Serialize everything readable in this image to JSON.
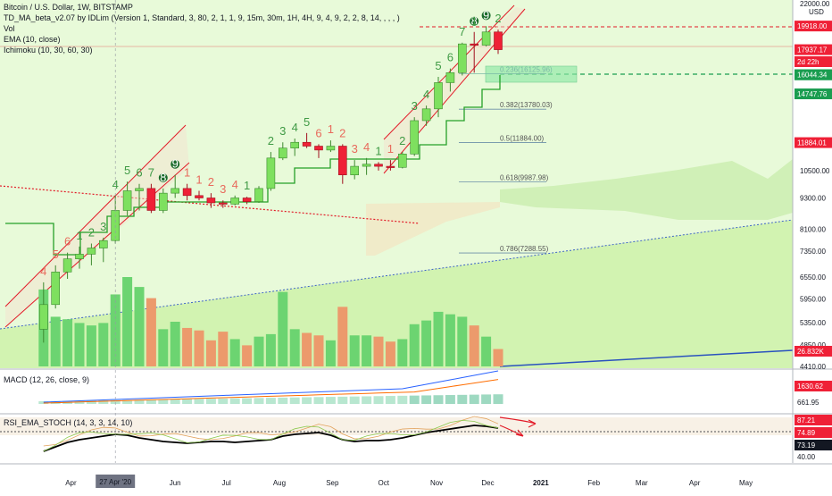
{
  "chart": {
    "title": "Bitcoin / U.S. Dollar, 1W, BITSTAMP",
    "indicators": [
      "TD_MA_beta_v2.07 by IDLim (Version 1, Standard, 3, 80, 2, 1, 1, 9, 15m, 30m, 1H, 4H, 9, 4, 9, 2, 2, 8, 14, , , , )",
      "Vol",
      "EMA (10, close)",
      "Ichimoku (10, 30, 60, 30)"
    ],
    "currency": "USD",
    "macd_label": "MACD (12, 26, close, 9)",
    "rsi_label": "RSI_EMA_STOCH (14, 3, 3, 14, 10)",
    "colors": {
      "up": "#7ee05f",
      "down": "#ef2036",
      "td_up": "#3f9a45",
      "td_down": "#e86a5c",
      "ichimoku_cloud": "#cdeeb2",
      "kijun": "#25a028",
      "channel": "#e21b28",
      "ema": "#e9a08a",
      "volume_up": "#6cd471",
      "volume_down": "#ec9a6c"
    }
  },
  "chart_data": [
    {
      "type": "candlestick",
      "scale": "log",
      "ylim": [
        4410,
        22000
      ],
      "x_range": [
        "2020-03-09",
        "2021-05-31"
      ],
      "candles": [
        {
          "date": "2020-03-16",
          "open": 5200,
          "high": 6400,
          "low": 4900,
          "close": 5800
        },
        {
          "date": "2020-03-23",
          "open": 5800,
          "high": 6900,
          "low": 5700,
          "close": 6700
        },
        {
          "date": "2020-03-30",
          "open": 6700,
          "high": 7300,
          "low": 6500,
          "close": 7100
        },
        {
          "date": "2020-04-06",
          "open": 7100,
          "high": 7500,
          "low": 6800,
          "close": 7250
        },
        {
          "date": "2020-04-13",
          "open": 7250,
          "high": 7600,
          "low": 6900,
          "close": 7450
        },
        {
          "date": "2020-04-20",
          "open": 7450,
          "high": 7800,
          "low": 7000,
          "close": 7700
        },
        {
          "date": "2020-04-27",
          "open": 7700,
          "high": 9400,
          "low": 7600,
          "close": 8800
        },
        {
          "date": "2020-05-04",
          "open": 8800,
          "high": 10000,
          "low": 8600,
          "close": 9600
        },
        {
          "date": "2020-05-11",
          "open": 9600,
          "high": 9900,
          "low": 8800,
          "close": 9700
        },
        {
          "date": "2020-05-18",
          "open": 9700,
          "high": 9900,
          "low": 8700,
          "close": 8800
        },
        {
          "date": "2020-05-25",
          "open": 8800,
          "high": 9700,
          "low": 8700,
          "close": 9500
        },
        {
          "date": "2020-06-01",
          "open": 9500,
          "high": 10300,
          "low": 9300,
          "close": 9700
        },
        {
          "date": "2020-06-08",
          "open": 9700,
          "high": 9900,
          "low": 9200,
          "close": 9400
        },
        {
          "date": "2020-06-15",
          "open": 9400,
          "high": 9600,
          "low": 9200,
          "close": 9300
        },
        {
          "date": "2020-06-22",
          "open": 9300,
          "high": 9500,
          "low": 8900,
          "close": 9100
        },
        {
          "date": "2020-06-29",
          "open": 9100,
          "high": 9200,
          "low": 8900,
          "close": 9050
        },
        {
          "date": "2020-07-06",
          "open": 9050,
          "high": 9400,
          "low": 9000,
          "close": 9300
        },
        {
          "date": "2020-07-13",
          "open": 9300,
          "high": 9350,
          "low": 9050,
          "close": 9150
        },
        {
          "date": "2020-07-20",
          "open": 9150,
          "high": 9800,
          "low": 9100,
          "close": 9700
        },
        {
          "date": "2020-07-27",
          "open": 9700,
          "high": 11400,
          "low": 9600,
          "close": 11100
        },
        {
          "date": "2020-08-03",
          "open": 11100,
          "high": 11900,
          "low": 11000,
          "close": 11600
        },
        {
          "date": "2020-08-10",
          "open": 11600,
          "high": 12100,
          "low": 11200,
          "close": 11900
        },
        {
          "date": "2020-08-17",
          "open": 11900,
          "high": 12400,
          "low": 11600,
          "close": 11700
        },
        {
          "date": "2020-08-24",
          "open": 11700,
          "high": 11800,
          "low": 11100,
          "close": 11500
        },
        {
          "date": "2020-08-31",
          "open": 11500,
          "high": 12000,
          "low": 11400,
          "close": 11700
        },
        {
          "date": "2020-09-07",
          "open": 11700,
          "high": 11800,
          "low": 9900,
          "close": 10300
        },
        {
          "date": "2020-09-14",
          "open": 10300,
          "high": 11000,
          "low": 10100,
          "close": 10700
        },
        {
          "date": "2020-09-21",
          "open": 10700,
          "high": 11100,
          "low": 10300,
          "close": 10800
        },
        {
          "date": "2020-09-28",
          "open": 10800,
          "high": 10900,
          "low": 10500,
          "close": 10700
        },
        {
          "date": "2020-10-05",
          "open": 10700,
          "high": 11000,
          "low": 10500,
          "close": 10650
        },
        {
          "date": "2020-10-12",
          "open": 10650,
          "high": 11400,
          "low": 10600,
          "close": 11300
        },
        {
          "date": "2020-10-19",
          "open": 11300,
          "high": 13300,
          "low": 11200,
          "close": 13100
        },
        {
          "date": "2020-10-26",
          "open": 13100,
          "high": 14000,
          "low": 12800,
          "close": 13800
        },
        {
          "date": "2020-11-02",
          "open": 13800,
          "high": 15900,
          "low": 13300,
          "close": 15500
        },
        {
          "date": "2020-11-09",
          "open": 15500,
          "high": 16500,
          "low": 14900,
          "close": 16200
        },
        {
          "date": "2020-11-16",
          "open": 16200,
          "high": 18500,
          "low": 16000,
          "close": 18400
        },
        {
          "date": "2020-11-23",
          "open": 18400,
          "high": 19400,
          "low": 16200,
          "close": 18300
        },
        {
          "date": "2020-11-30",
          "open": 18300,
          "high": 19900,
          "low": 18200,
          "close": 19400
        },
        {
          "date": "2020-12-07",
          "open": 19400,
          "high": 19600,
          "low": 17600,
          "close": 17937.17
        }
      ],
      "price_axis_ticks": [
        "22000.00",
        "10500.00",
        "9300.00",
        "8100.00",
        "7350.00",
        "6550.00",
        "5950.00",
        "5350.00",
        "4850.00",
        "4410.00"
      ],
      "price_badges": [
        {
          "value": "19918.00",
          "color": "#ef2036"
        },
        {
          "value": "17937.17",
          "color": "#ef2036"
        },
        {
          "value": "2d 22h",
          "color": "#ef2036"
        },
        {
          "value": "16057.52",
          "color": "#1a9d50"
        },
        {
          "value": "16044.34",
          "color": "#1a9d50"
        },
        {
          "value": "14747.76",
          "color": "#1a9d50"
        },
        {
          "value": "11884.01",
          "color": "#ef2036"
        },
        {
          "value": "26.832K",
          "color": "#ef2036"
        }
      ],
      "fib_levels": [
        {
          "ratio": "0.236",
          "value": "16125.96"
        },
        {
          "ratio": "0.382",
          "value": "13780.03"
        },
        {
          "ratio": "0.5",
          "value": "11884.00"
        },
        {
          "ratio": "0.618",
          "value": "9987.98"
        },
        {
          "ratio": "0.786",
          "value": "7288.55"
        }
      ],
      "td_counts": [
        {
          "date": "2020-03-16",
          "label": "4",
          "side": "down"
        },
        {
          "date": "2020-03-23",
          "label": "5",
          "side": "down"
        },
        {
          "date": "2020-03-30",
          "label": "6",
          "side": "down"
        },
        {
          "date": "2020-04-06",
          "label": "1",
          "side": "up"
        },
        {
          "date": "2020-04-13",
          "label": "2",
          "side": "up"
        },
        {
          "date": "2020-04-20",
          "label": "3",
          "side": "up"
        },
        {
          "date": "2020-04-27",
          "label": "4",
          "side": "up"
        },
        {
          "date": "2020-05-04",
          "label": "5",
          "side": "up"
        },
        {
          "date": "2020-05-11",
          "label": "6",
          "side": "up"
        },
        {
          "date": "2020-05-18",
          "label": "7",
          "side": "up"
        },
        {
          "date": "2020-05-25",
          "label": "8",
          "side": "up"
        },
        {
          "date": "2020-06-01",
          "label": "9",
          "side": "up"
        },
        {
          "date": "2020-06-08",
          "label": "1",
          "side": "down"
        },
        {
          "date": "2020-06-15",
          "label": "1",
          "side": "down"
        },
        {
          "date": "2020-06-22",
          "label": "2",
          "side": "down"
        },
        {
          "date": "2020-06-29",
          "label": "3",
          "side": "down"
        },
        {
          "date": "2020-07-06",
          "label": "4",
          "side": "down"
        },
        {
          "date": "2020-07-13",
          "label": "1",
          "side": "up"
        },
        {
          "date": "2020-07-27",
          "label": "2",
          "side": "up"
        },
        {
          "date": "2020-08-03",
          "label": "3",
          "side": "up"
        },
        {
          "date": "2020-08-10",
          "label": "4",
          "side": "up"
        },
        {
          "date": "2020-08-17",
          "label": "5",
          "side": "up"
        },
        {
          "date": "2020-08-24",
          "label": "6",
          "side": "down"
        },
        {
          "date": "2020-08-31",
          "label": "1",
          "side": "down"
        },
        {
          "date": "2020-09-07",
          "label": "2",
          "side": "down"
        },
        {
          "date": "2020-09-14",
          "label": "3",
          "side": "down"
        },
        {
          "date": "2020-09-21",
          "label": "4",
          "side": "down"
        },
        {
          "date": "2020-09-28",
          "label": "1",
          "side": "up"
        },
        {
          "date": "2020-10-05",
          "label": "1",
          "side": "down"
        },
        {
          "date": "2020-10-12",
          "label": "2",
          "side": "up"
        },
        {
          "date": "2020-10-19",
          "label": "3",
          "side": "up"
        },
        {
          "date": "2020-10-26",
          "label": "4",
          "side": "up"
        },
        {
          "date": "2020-11-02",
          "label": "5",
          "side": "up"
        },
        {
          "date": "2020-11-09",
          "label": "6",
          "side": "up"
        },
        {
          "date": "2020-11-16",
          "label": "7",
          "side": "up"
        },
        {
          "date": "2020-11-23",
          "label": "8",
          "side": "up"
        },
        {
          "date": "2020-11-30",
          "label": "9",
          "side": "up"
        },
        {
          "date": "2020-11-23",
          "label": "1",
          "side": "up"
        },
        {
          "date": "2020-12-07",
          "label": "2",
          "side": "up"
        }
      ]
    },
    {
      "type": "bar",
      "name": "Vol",
      "volumes": [
        62,
        40,
        38,
        35,
        33,
        35,
        58,
        72,
        64,
        55,
        30,
        36,
        31,
        29,
        21,
        28,
        22,
        17,
        24,
        26,
        60,
        30,
        27,
        25,
        21,
        48,
        25,
        25,
        24,
        20,
        22,
        34,
        37,
        44,
        42,
        40,
        33,
        24,
        14
      ]
    },
    {
      "type": "line",
      "name": "MACD (12, 26, close, 9)",
      "axis_ticks": [
        "1630.62",
        "661.95"
      ]
    },
    {
      "type": "line",
      "name": "RSI_EMA_STOCH (14, 3, 3, 14, 10)",
      "axis_ticks": [
        "87.21",
        "74.89",
        "73.19",
        "40.00"
      ]
    }
  ],
  "time_axis": {
    "labels": [
      "Apr",
      "May",
      "Jun",
      "Jul",
      "Aug",
      "Sep",
      "Oct",
      "Nov",
      "Dec",
      "2021",
      "Feb",
      "Mar",
      "Apr",
      "May"
    ],
    "crosshair_label": "27 Apr '20"
  }
}
